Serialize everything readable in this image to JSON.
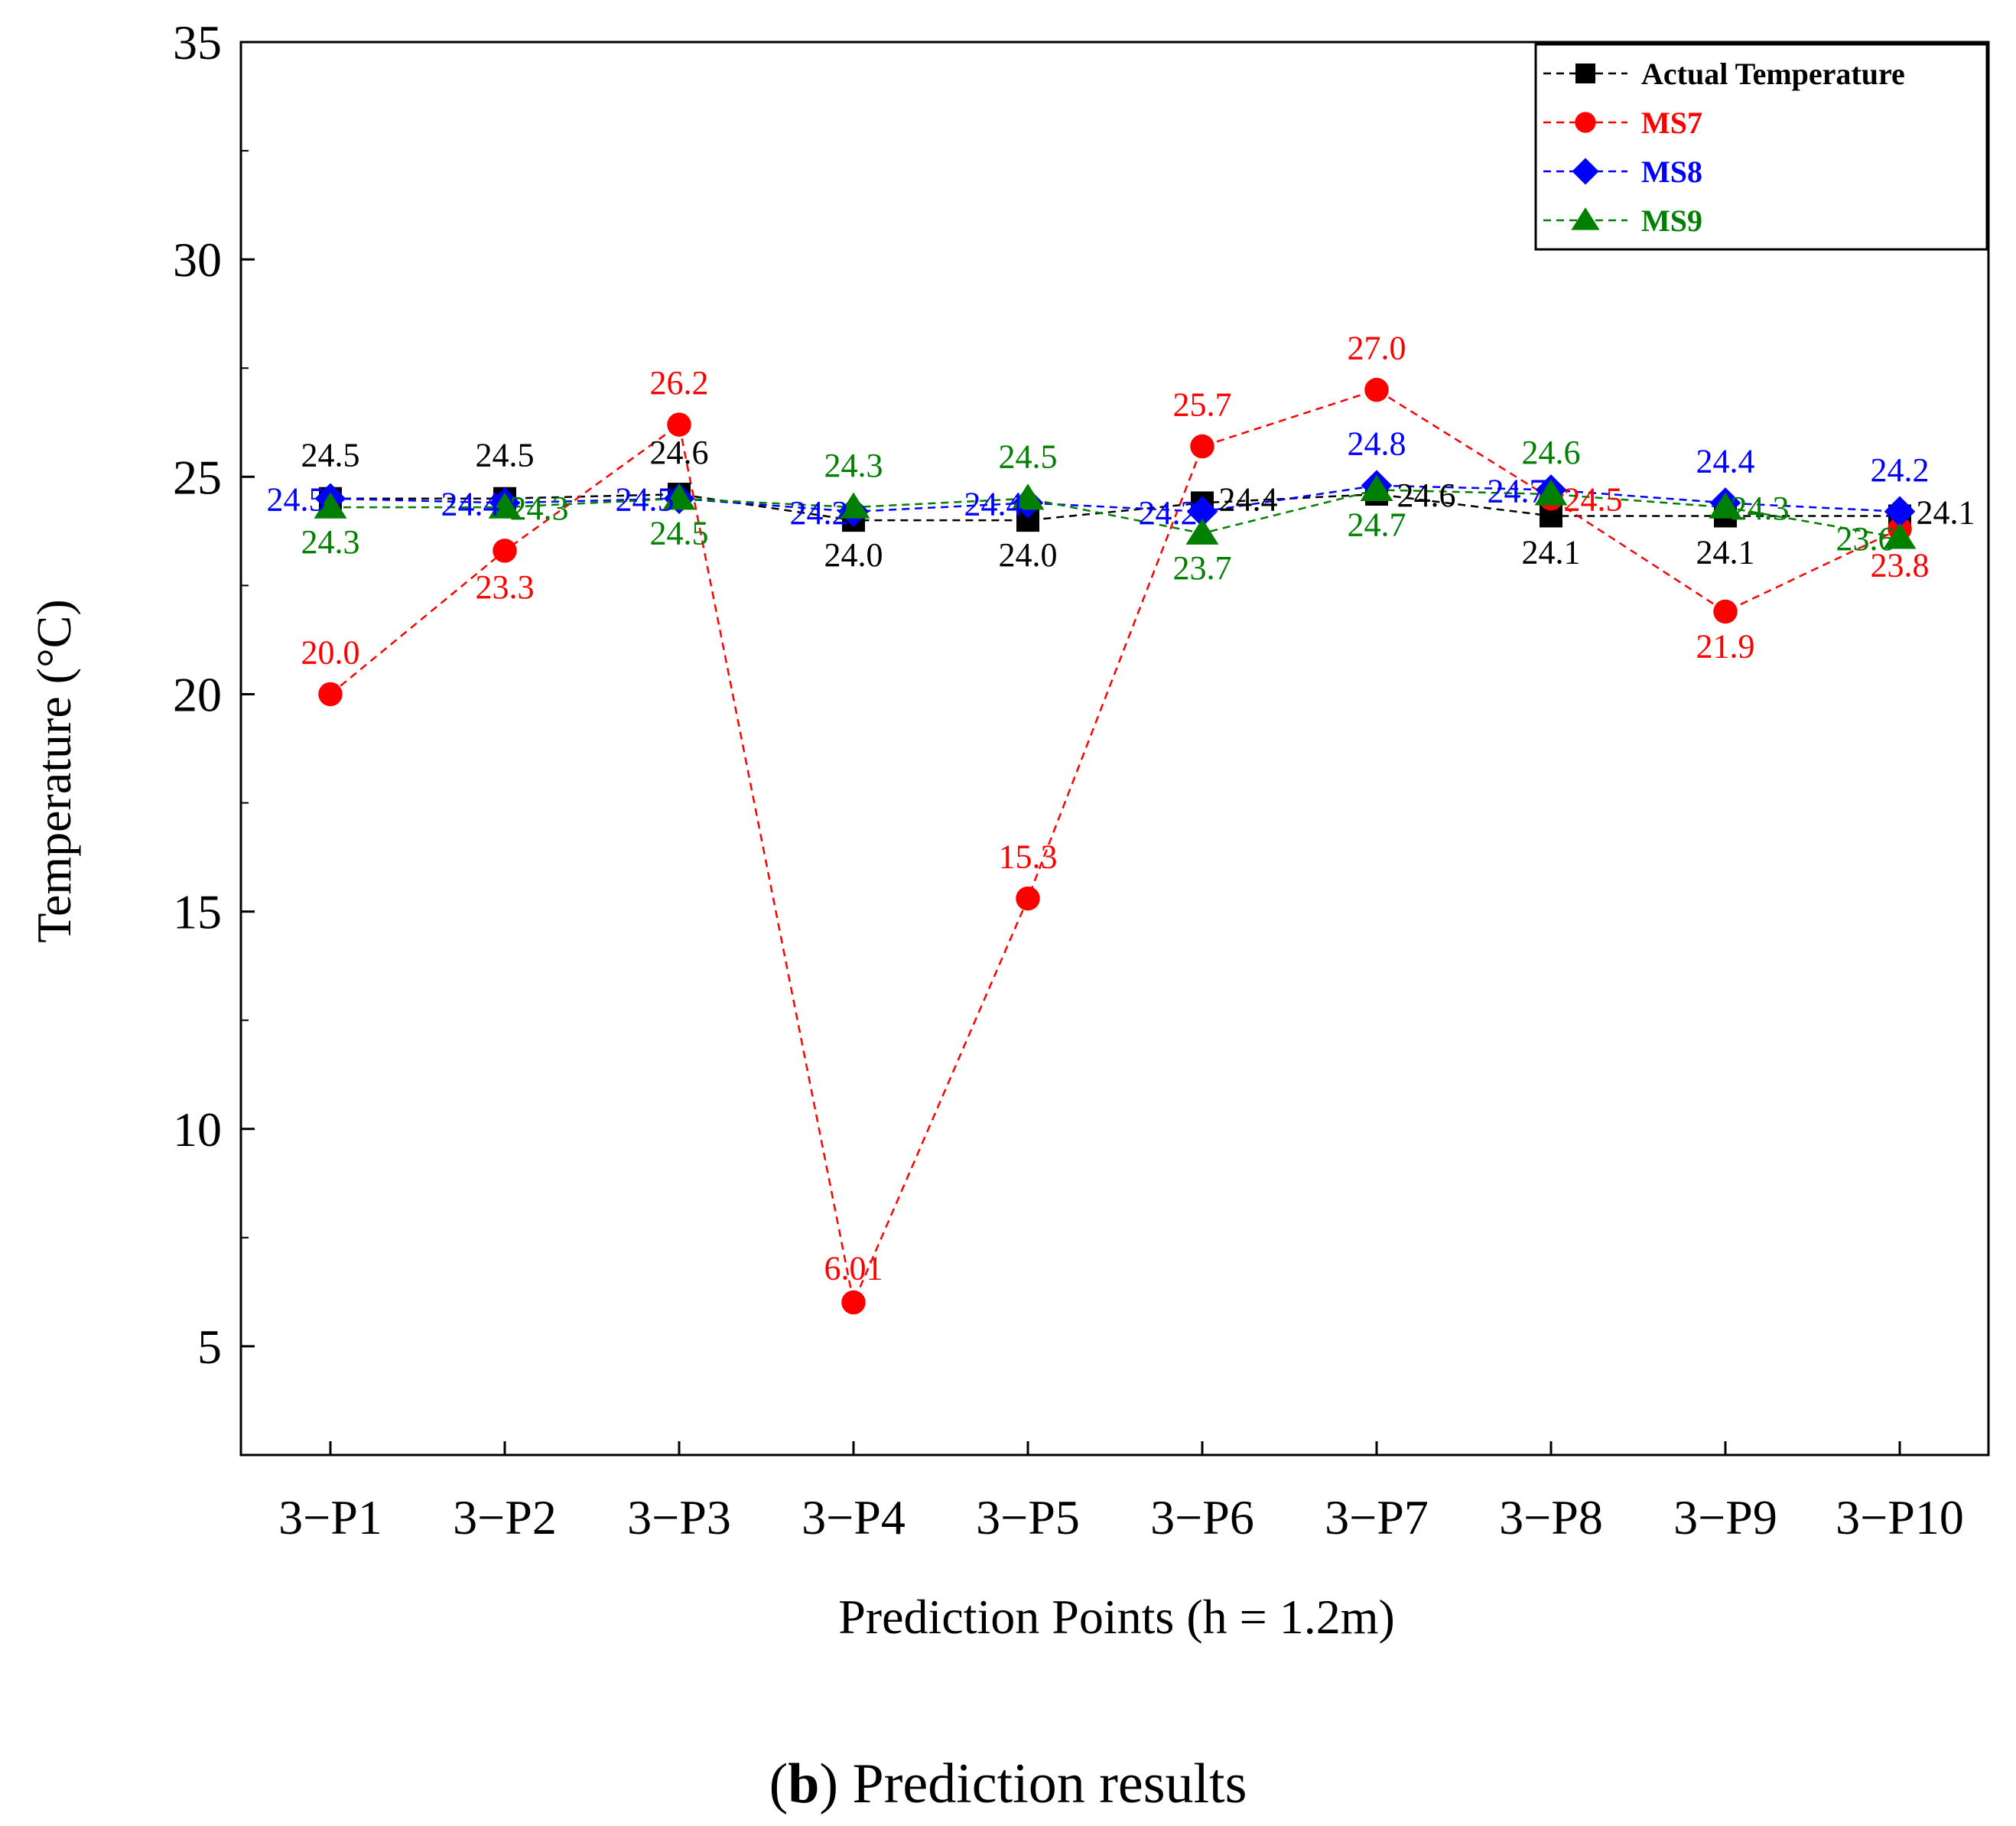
{
  "chart_data": {
    "type": "line",
    "title": "",
    "xlabel": "Prediction Points (h = 1.2m)",
    "ylabel": "Temperature (°C)",
    "ylim": [
      2.5,
      35
    ],
    "yticks": [
      5,
      10,
      15,
      20,
      25,
      30,
      35
    ],
    "categories": [
      "3-P1",
      "3-P2",
      "3-P3",
      "3-P4",
      "3-P5",
      "3-P6",
      "3-P7",
      "3-P8",
      "3-P9",
      "3-P10"
    ],
    "legend_position": "top-right",
    "series": [
      {
        "name": "Actual Temperature",
        "color": "#000000",
        "marker": "square",
        "values": [
          24.5,
          24.5,
          24.6,
          24.0,
          24.0,
          24.4,
          24.6,
          24.1,
          24.1,
          24.1
        ],
        "labels": [
          "24.5",
          "24.5",
          "24.6",
          "24.0",
          "24.0",
          "24.4",
          "24.6",
          "24.1",
          "24.1",
          "24.1"
        ]
      },
      {
        "name": "MS7",
        "color": "#ff0000",
        "marker": "circle",
        "values": [
          20.0,
          23.3,
          26.2,
          6.01,
          15.3,
          25.7,
          27.0,
          24.5,
          21.9,
          23.8
        ],
        "labels": [
          "20.0",
          "23.3",
          "26.2",
          "6.01",
          "15.3",
          "25.7",
          "27.0",
          "24.5",
          "21.9",
          "23.8"
        ]
      },
      {
        "name": "MS8",
        "color": "#0000ff",
        "marker": "diamond",
        "values": [
          24.5,
          24.4,
          24.5,
          24.2,
          24.4,
          24.2,
          24.8,
          24.7,
          24.4,
          24.2
        ],
        "labels": [
          "24.5",
          "24.4",
          "24.5",
          "24.2",
          "24.4",
          "24.2",
          "24.8",
          "24.7",
          "24.4",
          "24.2"
        ]
      },
      {
        "name": "MS9",
        "color": "#008000",
        "marker": "triangle",
        "values": [
          24.3,
          24.3,
          24.5,
          24.3,
          24.5,
          23.7,
          24.7,
          24.6,
          24.3,
          23.6
        ],
        "labels": [
          "24.3",
          "24.3",
          "24.5",
          "24.3",
          "24.5",
          "23.7",
          "24.7",
          "24.6",
          "24.3",
          "23.6"
        ]
      }
    ]
  },
  "caption": {
    "letter": "b",
    "open_paren": "(",
    "close_paren": ")",
    "text": " Prediction results"
  }
}
